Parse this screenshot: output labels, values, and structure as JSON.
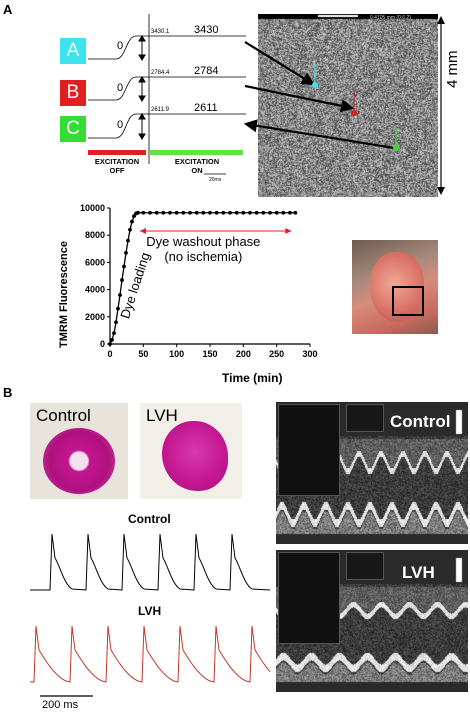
{
  "panelA": {
    "label": "A",
    "channels": [
      {
        "label": "A",
        "color": "#3fe3f0",
        "zero": "0",
        "small_value": "3430.1",
        "value": "3430"
      },
      {
        "label": "B",
        "color": "#e02020",
        "zero": "0",
        "small_value": "2784.4",
        "value": "2784"
      },
      {
        "label": "C",
        "color": "#33dd33",
        "zero": "0",
        "small_value": "2611.9",
        "value": "2611"
      }
    ],
    "excitation_off": "EXCITATION\nOFF",
    "excitation_on": "EXCITATION\nON",
    "scale_bar": "20ms",
    "scale_4mm": "4 mm",
    "image_header": "0.4105 mm (0.6.2)",
    "colors": {
      "excite_off": "#e02020",
      "excite_on": "#66e040"
    }
  },
  "chart_data": {
    "type": "line",
    "title": "",
    "xlabel": "Time (min)",
    "ylabel": "TMRM Fluorescence",
    "xlim": [
      0,
      300
    ],
    "ylim": [
      0,
      10000
    ],
    "xticks": [
      0,
      50,
      100,
      150,
      200,
      250,
      300
    ],
    "yticks": [
      0,
      2000,
      4000,
      6000,
      8000,
      10000
    ],
    "x": [
      0,
      3,
      6,
      9,
      12,
      15,
      18,
      21,
      24,
      27,
      30,
      33,
      36,
      39,
      42,
      50,
      60,
      70,
      80,
      90,
      100,
      110,
      120,
      130,
      140,
      150,
      160,
      170,
      180,
      190,
      200,
      210,
      220,
      230,
      240,
      250,
      260,
      270,
      278
    ],
    "y": [
      0,
      300,
      800,
      1600,
      2600,
      3600,
      4700,
      5700,
      6700,
      7600,
      8400,
      9000,
      9400,
      9600,
      9650,
      9650,
      9650,
      9650,
      9650,
      9650,
      9650,
      9650,
      9650,
      9650,
      9650,
      9650,
      9650,
      9650,
      9650,
      9650,
      9650,
      9650,
      9650,
      9650,
      9650,
      9650,
      9650,
      9650,
      9650
    ],
    "annotations": [
      "Dye loading",
      "Dye washout phase",
      "(no ischemia)"
    ],
    "colors": {
      "arrow": "#e02020",
      "line": "#000000"
    }
  },
  "panelB": {
    "label": "B",
    "photo_control": "Control",
    "photo_lvh": "LVH",
    "trace_control_title": "Control",
    "trace_lvh_title": "LVH",
    "scale_bar": "200 ms",
    "echo_control_label": "Control",
    "echo_lvh_label": "LVH",
    "colors": {
      "stain": "#c2168f",
      "trace_control": "#000000",
      "trace_lvh": "#c0392b"
    }
  }
}
